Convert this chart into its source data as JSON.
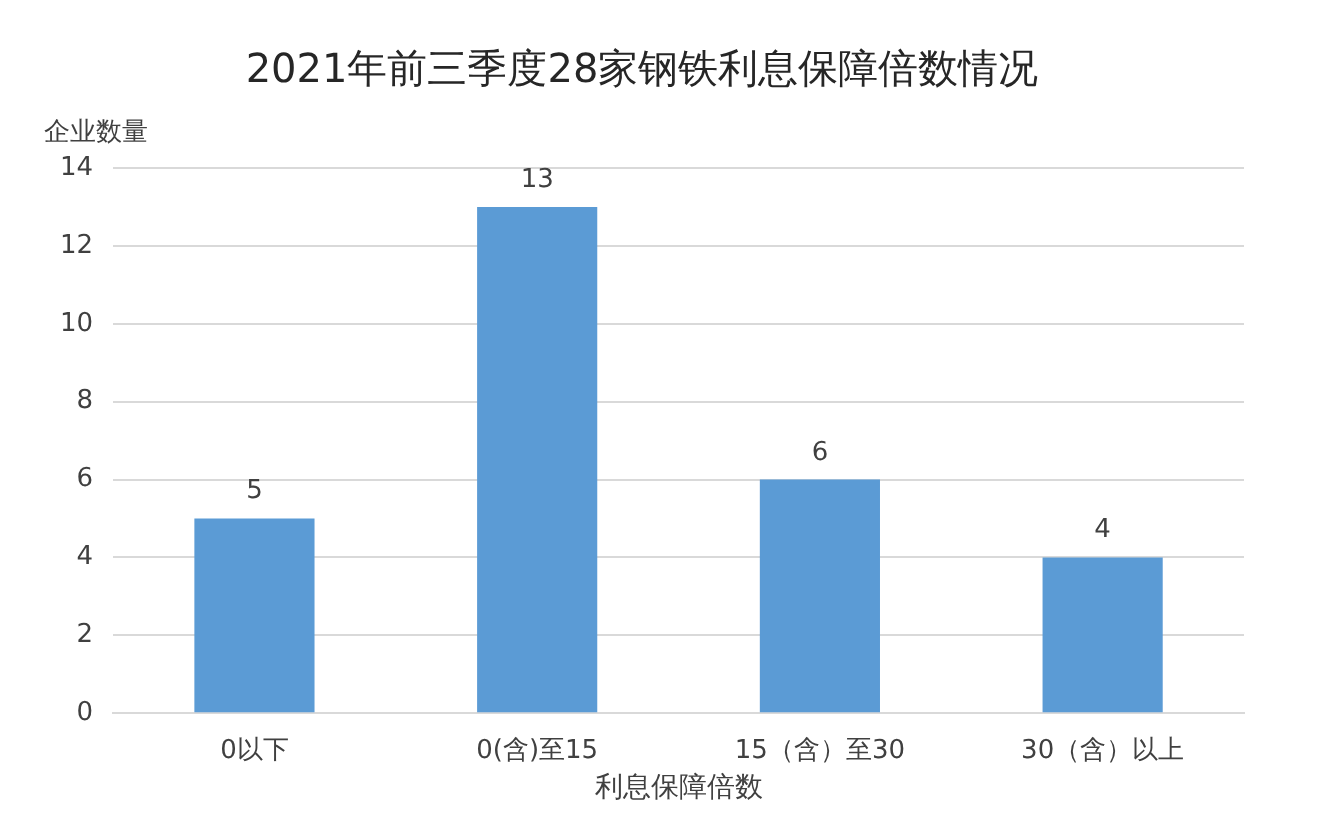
{
  "chart_data": {
    "type": "bar",
    "title": "2021年前三季度28家钢铁利息保障倍数情况",
    "xlabel": "利息保障倍数",
    "ylabel": "企业数量",
    "categories": [
      "0以下",
      "0(含)至15",
      "15（含）至30",
      "30（含）以上"
    ],
    "values": [
      5,
      13,
      6,
      4
    ],
    "color": "#5b9bd5",
    "ylim": [
      0,
      14
    ],
    "yticks": [
      0,
      2,
      4,
      6,
      8,
      10,
      12,
      14
    ],
    "grid": "y",
    "data_labels": true,
    "legend": false
  }
}
